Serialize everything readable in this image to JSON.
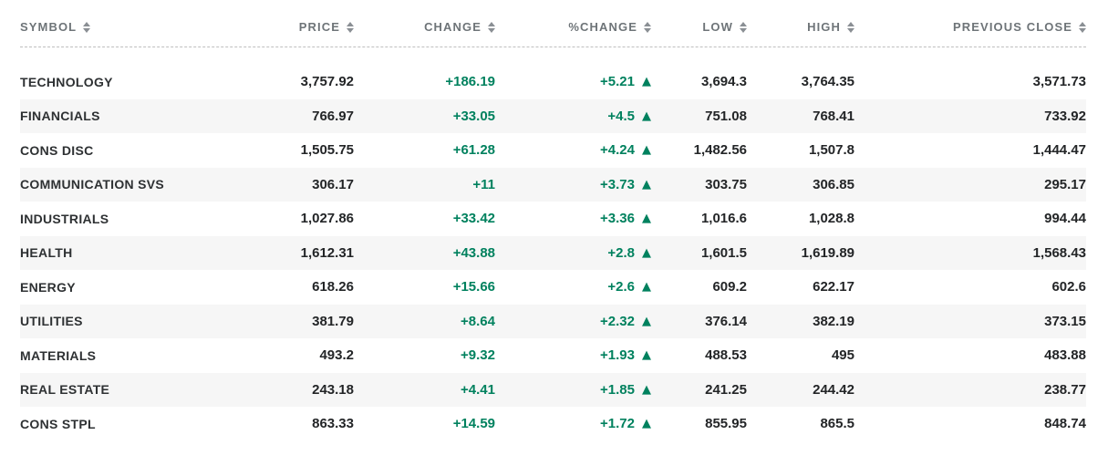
{
  "table": {
    "columns": [
      {
        "id": "symbol",
        "label": "SYMBOL"
      },
      {
        "id": "price",
        "label": "PRICE"
      },
      {
        "id": "change",
        "label": "CHANGE"
      },
      {
        "id": "pct_change",
        "label": "%CHANGE"
      },
      {
        "id": "low",
        "label": "LOW"
      },
      {
        "id": "high",
        "label": "HIGH"
      },
      {
        "id": "prev_close",
        "label": "PREVIOUS CLOSE"
      }
    ],
    "rows": [
      {
        "symbol": "TECHNOLOGY",
        "price": "3,757.92",
        "change": "+186.19",
        "pct_change": "+5.21",
        "direction": "up",
        "low": "3,694.3",
        "high": "3,764.35",
        "prev_close": "3,571.73"
      },
      {
        "symbol": "FINANCIALS",
        "price": "766.97",
        "change": "+33.05",
        "pct_change": "+4.5",
        "direction": "up",
        "low": "751.08",
        "high": "768.41",
        "prev_close": "733.92"
      },
      {
        "symbol": "CONS DISC",
        "price": "1,505.75",
        "change": "+61.28",
        "pct_change": "+4.24",
        "direction": "up",
        "low": "1,482.56",
        "high": "1,507.8",
        "prev_close": "1,444.47"
      },
      {
        "symbol": "COMMUNICATION SVS",
        "price": "306.17",
        "change": "+11",
        "pct_change": "+3.73",
        "direction": "up",
        "low": "303.75",
        "high": "306.85",
        "prev_close": "295.17"
      },
      {
        "symbol": "INDUSTRIALS",
        "price": "1,027.86",
        "change": "+33.42",
        "pct_change": "+3.36",
        "direction": "up",
        "low": "1,016.6",
        "high": "1,028.8",
        "prev_close": "994.44"
      },
      {
        "symbol": "HEALTH",
        "price": "1,612.31",
        "change": "+43.88",
        "pct_change": "+2.8",
        "direction": "up",
        "low": "1,601.5",
        "high": "1,619.89",
        "prev_close": "1,568.43"
      },
      {
        "symbol": "ENERGY",
        "price": "618.26",
        "change": "+15.66",
        "pct_change": "+2.6",
        "direction": "up",
        "low": "609.2",
        "high": "622.17",
        "prev_close": "602.6"
      },
      {
        "symbol": "UTILITIES",
        "price": "381.79",
        "change": "+8.64",
        "pct_change": "+2.32",
        "direction": "up",
        "low": "376.14",
        "high": "382.19",
        "prev_close": "373.15"
      },
      {
        "symbol": "MATERIALS",
        "price": "493.2",
        "change": "+9.32",
        "pct_change": "+1.93",
        "direction": "up",
        "low": "488.53",
        "high": "495",
        "prev_close": "483.88"
      },
      {
        "symbol": "REAL ESTATE",
        "price": "243.18",
        "change": "+4.41",
        "pct_change": "+1.85",
        "direction": "up",
        "low": "241.25",
        "high": "244.42",
        "prev_close": "238.77"
      },
      {
        "symbol": "CONS STPL",
        "price": "863.33",
        "change": "+14.59",
        "pct_change": "+1.72",
        "direction": "up",
        "low": "855.95",
        "high": "865.5",
        "prev_close": "848.74"
      }
    ]
  },
  "icons": {
    "sort": "sort-arrows",
    "up_triangle": "▲"
  },
  "colors": {
    "positive_green": "#00815E",
    "header_text": "#6E7478",
    "row_alt_bg": "#F6F6F6",
    "cell_text": "#232527",
    "symbol_text": "#2E3133",
    "divider": "#BFBFBF"
  }
}
